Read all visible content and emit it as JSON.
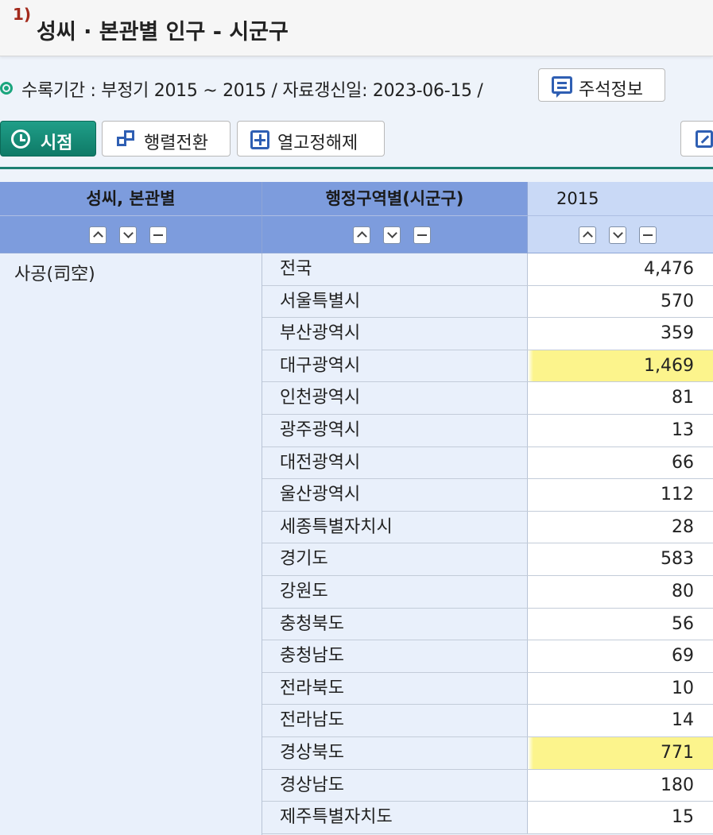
{
  "header": {
    "number": "1)",
    "title": "성씨 · 본관별 인구 - 시군구"
  },
  "info": {
    "text": "수록기간 : 부정기 2015 ~ 2015 / 자료갱신일: 2023-06-15 /",
    "note_button": "주석정보"
  },
  "toolbar": {
    "time_button": "시점",
    "pivot_button": "행렬전환",
    "unfix_button": "열고정해제"
  },
  "table": {
    "columns": [
      "성씨, 본관별",
      "행정구역별(시군구)",
      "2015"
    ],
    "surname": "사공(司空)",
    "rows": [
      {
        "region": "전국",
        "value": "4,476",
        "highlight": false
      },
      {
        "region": "서울특별시",
        "value": "570",
        "highlight": false
      },
      {
        "region": "부산광역시",
        "value": "359",
        "highlight": false
      },
      {
        "region": "대구광역시",
        "value": "1,469",
        "highlight": true
      },
      {
        "region": "인천광역시",
        "value": "81",
        "highlight": false
      },
      {
        "region": "광주광역시",
        "value": "13",
        "highlight": false
      },
      {
        "region": "대전광역시",
        "value": "66",
        "highlight": false
      },
      {
        "region": "울산광역시",
        "value": "112",
        "highlight": false
      },
      {
        "region": "세종특별자치시",
        "value": "28",
        "highlight": false
      },
      {
        "region": "경기도",
        "value": "583",
        "highlight": false
      },
      {
        "region": "강원도",
        "value": "80",
        "highlight": false
      },
      {
        "region": "충청북도",
        "value": "56",
        "highlight": false
      },
      {
        "region": "충청남도",
        "value": "69",
        "highlight": false
      },
      {
        "region": "전라북도",
        "value": "10",
        "highlight": false
      },
      {
        "region": "전라남도",
        "value": "14",
        "highlight": false
      },
      {
        "region": "경상북도",
        "value": "771",
        "highlight": true
      },
      {
        "region": "경상남도",
        "value": "180",
        "highlight": false
      },
      {
        "region": "제주특별자치도",
        "value": "15",
        "highlight": false
      }
    ]
  },
  "colors": {
    "accent": "#1c7f72",
    "header_blue": "#7d9cdd",
    "highlight": "#fcf48c"
  }
}
